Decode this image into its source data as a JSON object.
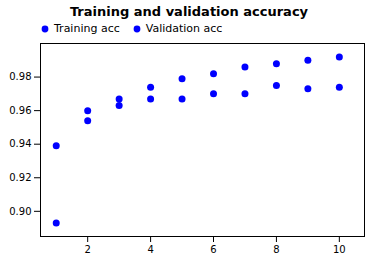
{
  "chart_data": {
    "type": "scatter",
    "title": "Training and validation accuracy",
    "xlim": [
      0.5,
      10.8
    ],
    "ylim": [
      0.885,
      1.0
    ],
    "xticks": [
      2,
      4,
      6,
      8,
      10
    ],
    "yticks": [
      {
        "value": 0.9,
        "label": "0.90"
      },
      0.92,
      0.94,
      0.96,
      0.98
    ],
    "legend": "upper left",
    "series": [
      {
        "name": "Training acc",
        "color": "blue",
        "marker": "o",
        "x": [
          1,
          2,
          3,
          4,
          5,
          6,
          7,
          8,
          9,
          10
        ],
        "values": [
          0.939,
          0.96,
          0.967,
          0.974,
          0.979,
          0.982,
          0.986,
          0.988,
          0.99,
          0.992
        ]
      },
      {
        "name": "Validation acc",
        "color": "blue",
        "marker": "o",
        "x": [
          1,
          2,
          3,
          4,
          5,
          6,
          7,
          8,
          9,
          10
        ],
        "values": [
          0.893,
          0.954,
          0.963,
          0.967,
          0.967,
          0.97,
          0.97,
          0.975,
          0.973,
          0.974
        ]
      }
    ]
  }
}
